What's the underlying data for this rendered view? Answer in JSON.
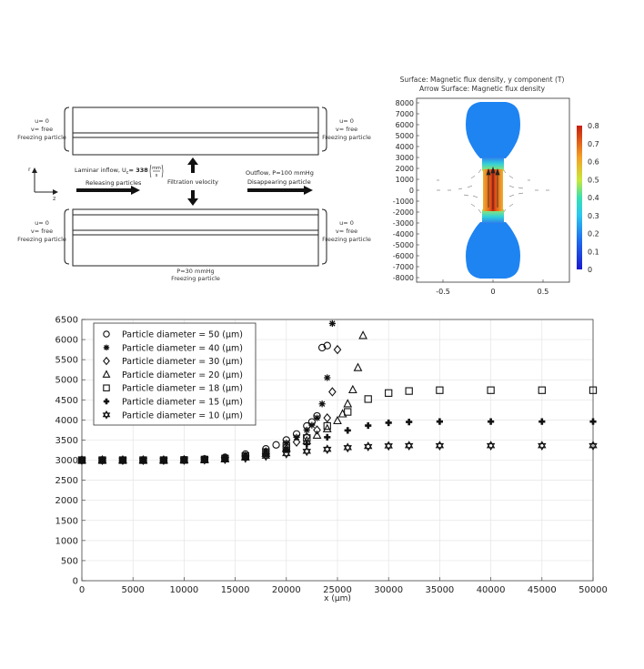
{
  "schematic": {
    "top_left_label": [
      "u= 0",
      "v= free",
      "Freezing particle"
    ],
    "top_right_label": [
      "u= 0",
      "v= free",
      "Freezing particle"
    ],
    "bottom_left_label": [
      "u= 0",
      "v= free",
      "Freezing particle"
    ],
    "bottom_right_label": [
      "u= 0",
      "v= free",
      "Freezing particle"
    ],
    "axis_r": "r",
    "axis_z": "z",
    "inflow_label": "Laminar inflow, U",
    "inflow_sub": "c",
    "inflow_value": "= 338",
    "inflow_unit_num": "mm",
    "inflow_unit_den": "s",
    "releasing": "Releasing particles",
    "filtration": "Filtration velocity",
    "outflow": "Outflow, P=100 mmHg",
    "disappearing": "Disappearing particle",
    "bottom_pressure": "P=30 mmHg",
    "bottom_freezing": "Freezing particle"
  },
  "field_plot": {
    "title_line1": "Surface: Magnetic flux density, y component (T)",
    "title_line2": "Arrow Surface: Magnetic flux density",
    "y_ticks": [
      "8000",
      "7000",
      "6000",
      "5000",
      "4000",
      "3000",
      "2000",
      "1000",
      "0",
      "-1000",
      "-2000",
      "-3000",
      "-4000",
      "-5000",
      "-6000",
      "-7000",
      "-8000"
    ],
    "x_ticks": [
      "-0.5",
      "0",
      "0.5"
    ],
    "colorbar_ticks": [
      "0.8",
      "0.7",
      "0.6",
      "0.5",
      "0.4",
      "0.3",
      "0.2",
      "0.1",
      "0"
    ],
    "colors": {
      "low": "#1f3ad6",
      "mid": "#2fd6c8",
      "high": "#d42a12"
    }
  },
  "chart_data": {
    "type": "scatter",
    "xlabel": "x (μm)",
    "ylabel": "",
    "xlim": [
      0,
      50000
    ],
    "ylim": [
      0,
      6500
    ],
    "x_ticks": [
      "0",
      "5000",
      "10000",
      "15000",
      "20000",
      "25000",
      "30000",
      "35000",
      "40000",
      "45000",
      "50000"
    ],
    "y_ticks": [
      "0",
      "500",
      "1000",
      "1500",
      "2000",
      "2500",
      "3000",
      "3500",
      "4000",
      "4500",
      "5000",
      "5500",
      "6000",
      "6500"
    ],
    "grid": true,
    "legend_position": "top-left",
    "series": [
      {
        "name": "Particle diameter = 50 (μm)",
        "marker": "circle",
        "x": [
          0,
          2000,
          4000,
          6000,
          8000,
          10000,
          12000,
          14000,
          16000,
          18000,
          19000,
          20000,
          21000,
          22000,
          22500,
          23000,
          23500,
          24000
        ],
        "y": [
          3000,
          3000,
          3000,
          3000,
          3000,
          3010,
          3030,
          3070,
          3150,
          3280,
          3380,
          3500,
          3650,
          3850,
          3950,
          4100,
          5800,
          5850
        ]
      },
      {
        "name": "Particle diameter = 40 (μm)",
        "marker": "star",
        "x": [
          0,
          2000,
          4000,
          6000,
          8000,
          10000,
          12000,
          14000,
          16000,
          18000,
          20000,
          21000,
          22000,
          22500,
          23000,
          23500,
          24000,
          24500
        ],
        "y": [
          3000,
          3000,
          3000,
          3000,
          3000,
          3010,
          3020,
          3050,
          3120,
          3230,
          3430,
          3570,
          3750,
          3870,
          4050,
          4400,
          5050,
          6400
        ]
      },
      {
        "name": "Particle diameter = 30 (μm)",
        "marker": "diamond",
        "x": [
          0,
          2000,
          4000,
          6000,
          8000,
          10000,
          12000,
          14000,
          16000,
          18000,
          20000,
          21000,
          22000,
          23000,
          24000,
          24500,
          25000
        ],
        "y": [
          3000,
          3000,
          3000,
          3000,
          3000,
          3005,
          3015,
          3040,
          3100,
          3200,
          3350,
          3450,
          3580,
          3750,
          4050,
          4700,
          5750
        ]
      },
      {
        "name": "Particle diameter = 20 (μm)",
        "marker": "triangle",
        "x": [
          0,
          2000,
          4000,
          6000,
          8000,
          10000,
          12000,
          14000,
          16000,
          18000,
          20000,
          22000,
          23000,
          24000,
          25000,
          25500,
          26000,
          26500,
          27000,
          27500
        ],
        "y": [
          3000,
          3000,
          3000,
          3000,
          3000,
          3005,
          3010,
          3030,
          3080,
          3170,
          3300,
          3480,
          3620,
          3780,
          3980,
          4150,
          4400,
          4750,
          5300,
          6100
        ]
      },
      {
        "name": "Particle diameter = 18 (μm)",
        "marker": "square",
        "x": [
          0,
          2000,
          4000,
          6000,
          8000,
          10000,
          12000,
          14000,
          16000,
          18000,
          20000,
          22000,
          24000,
          26000,
          28000,
          30000,
          32000,
          35000,
          40000,
          45000,
          50000
        ],
        "y": [
          3000,
          3000,
          3000,
          3000,
          3000,
          3005,
          3015,
          3040,
          3100,
          3200,
          3350,
          3550,
          3850,
          4200,
          4520,
          4670,
          4720,
          4740,
          4740,
          4740,
          4740
        ]
      },
      {
        "name": "Particle diameter = 15 (μm)",
        "marker": "plus",
        "x": [
          0,
          2000,
          4000,
          6000,
          8000,
          10000,
          12000,
          14000,
          16000,
          18000,
          20000,
          22000,
          24000,
          26000,
          28000,
          30000,
          32000,
          35000,
          40000,
          45000,
          50000
        ],
        "y": [
          3000,
          3000,
          3000,
          3000,
          3000,
          3005,
          3012,
          3030,
          3080,
          3150,
          3260,
          3400,
          3570,
          3740,
          3860,
          3930,
          3950,
          3960,
          3960,
          3960,
          3960
        ]
      },
      {
        "name": "Particle diameter = 10 (μm)",
        "marker": "hexagram",
        "x": [
          0,
          2000,
          4000,
          6000,
          8000,
          10000,
          12000,
          14000,
          16000,
          18000,
          20000,
          22000,
          24000,
          26000,
          28000,
          30000,
          32000,
          35000,
          40000,
          45000,
          50000
        ],
        "y": [
          3000,
          3000,
          3000,
          3000,
          3000,
          3003,
          3008,
          3020,
          3050,
          3100,
          3160,
          3220,
          3270,
          3310,
          3340,
          3355,
          3360,
          3360,
          3360,
          3360,
          3360
        ]
      }
    ]
  }
}
